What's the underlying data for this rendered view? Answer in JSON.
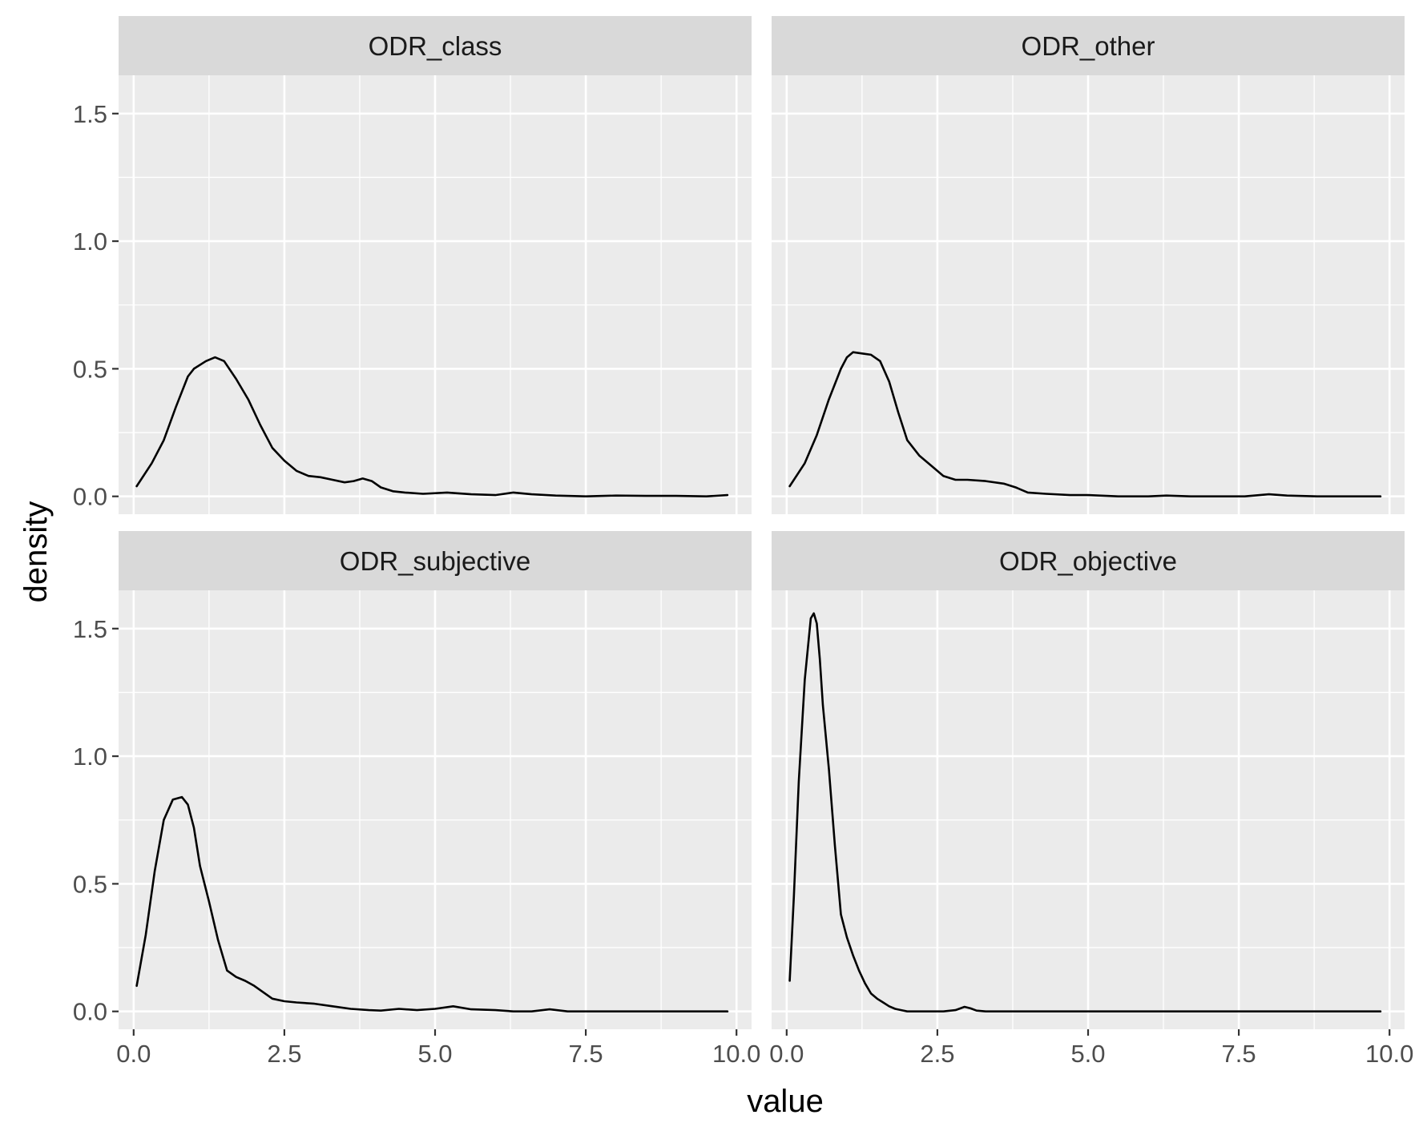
{
  "chart_data": {
    "type": "line",
    "xlabel": "value",
    "ylabel": "density",
    "xlim": [
      -0.25,
      10.25
    ],
    "ylim": [
      -0.07,
      1.65
    ],
    "x_ticks": [
      0.0,
      2.5,
      5.0,
      7.5,
      10.0
    ],
    "x_tick_labels": [
      "0.0",
      "2.5",
      "5.0",
      "7.5",
      "10.0"
    ],
    "y_ticks": [
      0.0,
      0.5,
      1.0,
      1.5
    ],
    "y_tick_labels": [
      "0.0",
      "0.5",
      "1.0",
      "1.5"
    ],
    "grid": true,
    "facets": [
      {
        "title": "ODR_class",
        "x": [
          0.05,
          0.3,
          0.5,
          0.7,
          0.9,
          1.0,
          1.2,
          1.35,
          1.5,
          1.7,
          1.9,
          2.1,
          2.3,
          2.5,
          2.7,
          2.9,
          3.1,
          3.3,
          3.5,
          3.65,
          3.8,
          3.95,
          4.1,
          4.3,
          4.5,
          4.8,
          5.2,
          5.6,
          6.0,
          6.3,
          6.6,
          7.0,
          7.5,
          8.0,
          8.5,
          9.0,
          9.5,
          9.85
        ],
        "y": [
          0.04,
          0.13,
          0.22,
          0.35,
          0.47,
          0.5,
          0.53,
          0.545,
          0.53,
          0.46,
          0.38,
          0.28,
          0.19,
          0.14,
          0.1,
          0.08,
          0.075,
          0.065,
          0.055,
          0.06,
          0.07,
          0.06,
          0.035,
          0.02,
          0.015,
          0.01,
          0.015,
          0.008,
          0.005,
          0.015,
          0.008,
          0.003,
          0.0,
          0.003,
          0.002,
          0.002,
          0.0,
          0.005
        ]
      },
      {
        "title": "ODR_other",
        "x": [
          0.05,
          0.3,
          0.5,
          0.7,
          0.9,
          1.0,
          1.1,
          1.25,
          1.4,
          1.55,
          1.7,
          1.85,
          2.0,
          2.2,
          2.4,
          2.6,
          2.8,
          3.0,
          3.3,
          3.6,
          3.8,
          4.0,
          4.3,
          4.7,
          5.0,
          5.5,
          6.0,
          6.3,
          6.7,
          7.2,
          7.6,
          8.0,
          8.3,
          8.8,
          9.4,
          9.85
        ],
        "y": [
          0.04,
          0.13,
          0.24,
          0.38,
          0.5,
          0.545,
          0.565,
          0.56,
          0.555,
          0.53,
          0.45,
          0.33,
          0.22,
          0.16,
          0.12,
          0.08,
          0.065,
          0.065,
          0.06,
          0.05,
          0.035,
          0.015,
          0.01,
          0.005,
          0.005,
          0.0,
          0.0,
          0.003,
          0.0,
          0.0,
          0.0,
          0.008,
          0.003,
          0.0,
          0.0,
          0.0
        ]
      },
      {
        "title": "ODR_subjective",
        "x": [
          0.05,
          0.2,
          0.35,
          0.5,
          0.65,
          0.8,
          0.9,
          1.0,
          1.1,
          1.25,
          1.4,
          1.55,
          1.7,
          1.85,
          2.0,
          2.15,
          2.3,
          2.5,
          2.7,
          3.0,
          3.3,
          3.6,
          3.9,
          4.1,
          4.4,
          4.7,
          5.0,
          5.3,
          5.6,
          6.0,
          6.3,
          6.6,
          6.9,
          7.2,
          7.6,
          8.0,
          8.5,
          9.0,
          9.5,
          9.85
        ],
        "y": [
          0.1,
          0.3,
          0.55,
          0.75,
          0.83,
          0.84,
          0.81,
          0.72,
          0.57,
          0.43,
          0.28,
          0.16,
          0.135,
          0.12,
          0.1,
          0.075,
          0.05,
          0.04,
          0.035,
          0.03,
          0.02,
          0.01,
          0.005,
          0.003,
          0.01,
          0.005,
          0.01,
          0.02,
          0.008,
          0.005,
          0.0,
          0.0,
          0.008,
          0.0,
          0.0,
          0.0,
          0.0,
          0.0,
          0.0,
          0.0
        ]
      },
      {
        "title": "ODR_objective",
        "x": [
          0.05,
          0.12,
          0.2,
          0.3,
          0.4,
          0.45,
          0.5,
          0.55,
          0.6,
          0.7,
          0.8,
          0.9,
          1.0,
          1.1,
          1.2,
          1.3,
          1.4,
          1.5,
          1.6,
          1.7,
          1.8,
          1.9,
          2.0,
          2.3,
          2.6,
          2.8,
          2.95,
          3.05,
          3.15,
          3.3,
          3.6,
          4.0,
          5.0,
          6.0,
          7.0,
          8.0,
          9.0,
          9.85
        ],
        "y": [
          0.12,
          0.45,
          0.9,
          1.3,
          1.54,
          1.56,
          1.52,
          1.38,
          1.2,
          0.95,
          0.65,
          0.38,
          0.29,
          0.22,
          0.16,
          0.11,
          0.07,
          0.05,
          0.035,
          0.02,
          0.01,
          0.005,
          0.0,
          0.0,
          0.0,
          0.005,
          0.018,
          0.012,
          0.003,
          0.0,
          0.0,
          0.0,
          0.0,
          0.0,
          0.0,
          0.0,
          0.0,
          0.0
        ]
      }
    ]
  }
}
